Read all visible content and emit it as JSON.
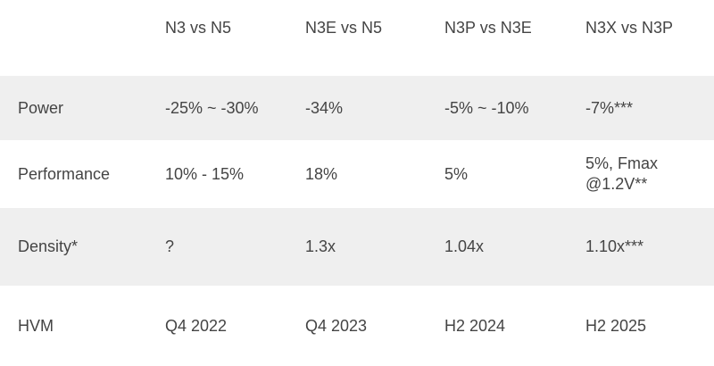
{
  "table": {
    "headers": [
      "",
      "N3 vs N5",
      "N3E vs N5",
      "N3P vs N3E",
      "N3X vs N3P"
    ],
    "rows": [
      {
        "label": "Power",
        "cells": [
          "-25% ~ -30%",
          "-34%",
          "-5% ~ -10%",
          "-7%***"
        ]
      },
      {
        "label": "Performance",
        "cells": [
          "10% - 15%",
          "18%",
          "5%",
          "5%, Fmax @1.2V**"
        ]
      },
      {
        "label": "Density*",
        "cells": [
          "?",
          "1.3x",
          "1.04x",
          "1.10x***"
        ]
      },
      {
        "label": "HVM",
        "cells": [
          "Q4 2022",
          "Q4 2023",
          "H2 2024",
          "H2 2025"
        ]
      }
    ]
  }
}
